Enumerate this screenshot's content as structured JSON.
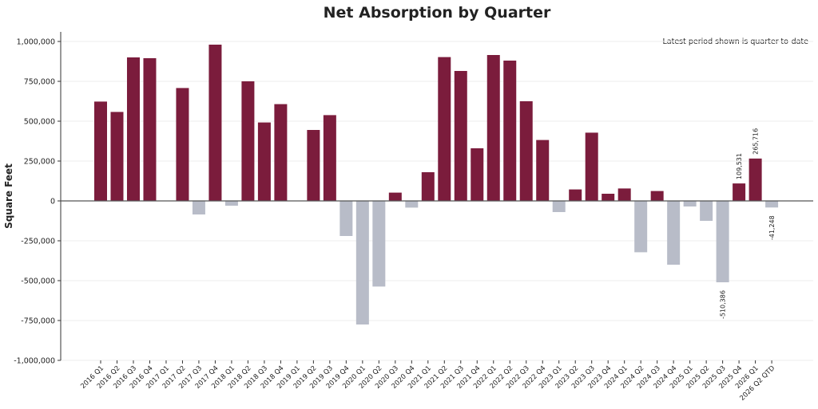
{
  "chart_data": {
    "type": "bar",
    "title": "Net Absorption by Quarter",
    "xlabel": "",
    "ylabel": "Square Feet",
    "ylim": [
      -1000000,
      1000000
    ],
    "yticks": [
      -1000000,
      -750000,
      -500000,
      -250000,
      0,
      250000,
      500000,
      750000,
      1000000
    ],
    "ytick_labels": [
      "-1,000,000",
      "-750,000",
      "-500,000",
      "-250,000",
      "0",
      "250,000",
      "500,000",
      "750,000",
      "1,000,000"
    ],
    "grid": "horizontal",
    "annotation": "Latest period shown is quarter-to-date",
    "colors": {
      "positive": "#7b1c3c",
      "negative": "#b8bcc8"
    },
    "categories": [
      "2016 Q1",
      "2016 Q2",
      "2016 Q3",
      "2016 Q4",
      "2017 Q1",
      "2017 Q2",
      "2017 Q3",
      "2017 Q4",
      "2018 Q1",
      "2018 Q2",
      "2018 Q3",
      "2018 Q4",
      "2019 Q1",
      "2019 Q2",
      "2019 Q3",
      "2019 Q4",
      "2020 Q1",
      "2020 Q2",
      "2020 Q3",
      "2020 Q4",
      "2021 Q1",
      "2021 Q2",
      "2021 Q3",
      "2021 Q4",
      "2022 Q1",
      "2022 Q2",
      "2022 Q3",
      "2022 Q4",
      "2023 Q1",
      "2023 Q2",
      "2023 Q3",
      "2023 Q4",
      "2024 Q1",
      "2024 Q2",
      "2024 Q3",
      "2024 Q4",
      "2025 Q1",
      "2025 Q2",
      "2025 Q3",
      "2025 Q4",
      "2026 Q1",
      "2026 Q2 QTD"
    ],
    "values": [
      623000,
      558000,
      900000,
      895000,
      0,
      708000,
      -85000,
      980000,
      -30000,
      750000,
      492000,
      607000,
      0,
      445000,
      538000,
      -220000,
      -775000,
      -537000,
      52000,
      -42000,
      180000,
      902000,
      815000,
      330000,
      915000,
      880000,
      625000,
      382000,
      -70000,
      72000,
      428000,
      45000,
      78000,
      -322000,
      62000,
      -400000,
      -35000,
      -125000,
      -510386,
      109531,
      265716,
      -41248
    ],
    "data_labels": [
      {
        "category": "2025 Q3",
        "text": "-510,386"
      },
      {
        "category": "2025 Q4",
        "text": "109,531"
      },
      {
        "category": "2026 Q1",
        "text": "265,716"
      },
      {
        "category": "2026 Q2 QTD",
        "text": "-41,248"
      }
    ]
  }
}
